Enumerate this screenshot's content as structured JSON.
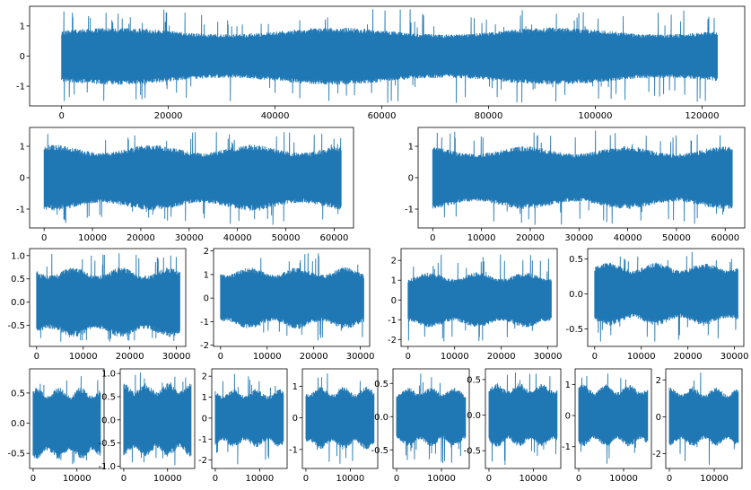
{
  "chart_data": [
    {
      "type": "line",
      "row": 1,
      "title": "",
      "xlabel": "",
      "ylabel": "",
      "xlim": [
        -6000,
        128000
      ],
      "ylim": [
        -1.65,
        1.65
      ],
      "xticks": [
        0,
        20000,
        40000,
        60000,
        80000,
        100000,
        120000
      ],
      "yticks": [
        -1,
        0,
        1
      ],
      "ytick_labels": [
        "-1",
        "0",
        "1"
      ],
      "n_samples": 122880,
      "amplitude": {
        "core": 0.95,
        "peak": 1.55,
        "min": -1.55
      },
      "series": [
        {
          "name": "",
          "color": "#1f77b4"
        }
      ],
      "grid": false,
      "legend": "none"
    },
    {
      "type": "line",
      "row": 2,
      "title": "",
      "xlabel": "",
      "ylabel": "",
      "xlim": [
        -3000,
        64000
      ],
      "ylim": [
        -1.6,
        1.6
      ],
      "xticks": [
        0,
        10000,
        20000,
        30000,
        40000,
        50000,
        60000
      ],
      "yticks": [
        -1,
        0,
        1
      ],
      "ytick_labels": [
        "-1",
        "0",
        "1"
      ],
      "n_samples": 61440,
      "amplitude": {
        "core": 1.05,
        "peak": 1.45,
        "min": -1.5
      },
      "series": [
        {
          "name": "",
          "color": "#1f77b4"
        }
      ],
      "grid": false,
      "legend": "none"
    },
    {
      "type": "line",
      "row": 2,
      "title": "",
      "xlabel": "",
      "ylabel": "",
      "xlim": [
        -3000,
        64000
      ],
      "ylim": [
        -1.6,
        1.6
      ],
      "xticks": [
        0,
        10000,
        20000,
        30000,
        40000,
        50000,
        60000
      ],
      "yticks": [
        -1,
        0,
        1
      ],
      "ytick_labels": [
        "-1",
        "0",
        "1"
      ],
      "n_samples": 61440,
      "amplitude": {
        "core": 1.0,
        "peak": 1.5,
        "min": -1.5
      },
      "series": [
        {
          "name": "",
          "color": "#1f77b4"
        }
      ],
      "grid": false,
      "legend": "none"
    },
    {
      "type": "line",
      "row": 3,
      "title": "",
      "xlabel": "",
      "ylabel": "",
      "xlim": [
        -1500,
        32000
      ],
      "ylim": [
        -0.95,
        1.15
      ],
      "xticks": [
        0,
        10000,
        20000,
        30000
      ],
      "yticks": [
        -0.5,
        0.0,
        0.5,
        1.0
      ],
      "ytick_labels": [
        "-0.5",
        "0.0",
        "0.5",
        "1.0"
      ],
      "n_samples": 30720,
      "amplitude": {
        "core": 0.75,
        "peak": 1.05,
        "min": -0.85
      },
      "series": [
        {
          "name": "",
          "color": "#1f77b4"
        }
      ],
      "grid": false,
      "legend": "none"
    },
    {
      "type": "line",
      "row": 3,
      "title": "",
      "xlabel": "",
      "ylabel": "",
      "xlim": [
        -1500,
        32000
      ],
      "ylim": [
        -2.05,
        2.1
      ],
      "xticks": [
        0,
        10000,
        20000,
        30000
      ],
      "yticks": [
        -2,
        -1,
        0,
        1,
        2
      ],
      "ytick_labels": [
        "-2",
        "-1",
        "0",
        "1",
        "2"
      ],
      "n_samples": 30720,
      "amplitude": {
        "core": 1.3,
        "peak": 1.9,
        "min": -1.8
      },
      "series": [
        {
          "name": "",
          "color": "#1f77b4"
        }
      ],
      "grid": false,
      "legend": "none"
    },
    {
      "type": "line",
      "row": 3,
      "title": "",
      "xlabel": "",
      "ylabel": "",
      "xlim": [
        -1500,
        32000
      ],
      "ylim": [
        -2.35,
        2.6
      ],
      "xticks": [
        0,
        10000,
        20000,
        30000
      ],
      "yticks": [
        -2,
        -1,
        0,
        1,
        2
      ],
      "ytick_labels": [
        "-2",
        "-1",
        "0",
        "1",
        "2"
      ],
      "n_samples": 30720,
      "amplitude": {
        "core": 1.4,
        "peak": 2.3,
        "min": -2.1
      },
      "series": [
        {
          "name": "",
          "color": "#1f77b4"
        }
      ],
      "grid": false,
      "legend": "none"
    },
    {
      "type": "line",
      "row": 3,
      "title": "",
      "xlabel": "",
      "ylabel": "",
      "xlim": [
        -1500,
        32000
      ],
      "ylim": [
        -0.75,
        0.65
      ],
      "xticks": [
        0,
        10000,
        20000,
        30000
      ],
      "yticks": [
        -0.5,
        0.0,
        0.5
      ],
      "ytick_labels": [
        "-0.5",
        "0.0",
        "0.5"
      ],
      "n_samples": 30720,
      "amplitude": {
        "core": 0.45,
        "peak": 0.6,
        "min": -0.68
      },
      "series": [
        {
          "name": "",
          "color": "#1f77b4"
        }
      ],
      "grid": false,
      "legend": "none"
    },
    {
      "type": "line",
      "row": 4,
      "title": "",
      "xlabel": "",
      "ylabel": "",
      "xlim": [
        -800,
        16200
      ],
      "ylim": [
        -0.75,
        0.9
      ],
      "xticks": [
        0,
        10000
      ],
      "yticks": [
        -0.5,
        0.0,
        0.5
      ],
      "ytick_labels": [
        "-0.5",
        "0.0",
        "0.5"
      ],
      "n_samples": 15360,
      "amplitude": {
        "core": 0.6,
        "peak": 0.78,
        "min": -0.68
      },
      "series": [
        {
          "name": "",
          "color": "#1f77b4"
        }
      ],
      "grid": false,
      "legend": "none"
    },
    {
      "type": "line",
      "row": 4,
      "title": "",
      "xlabel": "",
      "ylabel": "",
      "xlim": [
        -800,
        16200
      ],
      "ylim": [
        -1.05,
        1.1
      ],
      "xticks": [
        0,
        10000
      ],
      "yticks": [
        -1.0,
        -0.5,
        0.0,
        0.5,
        1.0
      ],
      "ytick_labels": [
        "-1.0",
        "-0.5",
        "0.0",
        "0.5",
        "1.0"
      ],
      "n_samples": 15360,
      "amplitude": {
        "core": 0.8,
        "peak": 1.02,
        "min": -0.98
      },
      "series": [
        {
          "name": "",
          "color": "#1f77b4"
        }
      ],
      "grid": false,
      "legend": "none"
    },
    {
      "type": "line",
      "row": 4,
      "title": "",
      "xlabel": "",
      "ylabel": "",
      "xlim": [
        -800,
        16200
      ],
      "ylim": [
        -2.4,
        2.35
      ],
      "xticks": [
        0,
        10000
      ],
      "yticks": [
        -2,
        -1,
        0,
        1,
        2
      ],
      "ytick_labels": [
        "-2",
        "-1",
        "0",
        "1",
        "2"
      ],
      "n_samples": 15360,
      "amplitude": {
        "core": 1.4,
        "peak": 2.1,
        "min": -2.2
      },
      "series": [
        {
          "name": "",
          "color": "#1f77b4"
        }
      ],
      "grid": false,
      "legend": "none"
    },
    {
      "type": "line",
      "row": 4,
      "title": "",
      "xlabel": "",
      "ylabel": "",
      "xlim": [
        -800,
        16200
      ],
      "ylim": [
        -1.6,
        1.55
      ],
      "xticks": [
        0,
        10000
      ],
      "yticks": [
        -1,
        0,
        1
      ],
      "ytick_labels": [
        "-1",
        "0",
        "1"
      ],
      "n_samples": 15360,
      "amplitude": {
        "core": 1.0,
        "peak": 1.4,
        "min": -1.45
      },
      "series": [
        {
          "name": "",
          "color": "#1f77b4"
        }
      ],
      "grid": false,
      "legend": "none"
    },
    {
      "type": "line",
      "row": 4,
      "title": "",
      "xlabel": "",
      "ylabel": "",
      "xlim": [
        -800,
        16200
      ],
      "ylim": [
        -0.78,
        0.72
      ],
      "xticks": [
        0,
        10000
      ],
      "yticks": [
        -0.5,
        0.0,
        0.5
      ],
      "ytick_labels": [
        "-0.5",
        "0.0",
        "0.5"
      ],
      "n_samples": 15360,
      "amplitude": {
        "core": 0.45,
        "peak": 0.65,
        "min": -0.7
      },
      "series": [
        {
          "name": "",
          "color": "#1f77b4"
        }
      ],
      "grid": false,
      "legend": "none"
    },
    {
      "type": "line",
      "row": 4,
      "title": "",
      "xlabel": "",
      "ylabel": "",
      "xlim": [
        -800,
        16200
      ],
      "ylim": [
        -0.75,
        0.65
      ],
      "xticks": [
        0,
        10000
      ],
      "yticks": [
        -0.5,
        0.0,
        0.5
      ],
      "ytick_labels": [
        "-0.5",
        "0.0",
        "0.5"
      ],
      "n_samples": 15360,
      "amplitude": {
        "core": 0.45,
        "peak": 0.6,
        "min": -0.7
      },
      "series": [
        {
          "name": "",
          "color": "#1f77b4"
        }
      ],
      "grid": false,
      "legend": "none"
    },
    {
      "type": "line",
      "row": 4,
      "title": "",
      "xlabel": "",
      "ylabel": "",
      "xlim": [
        -800,
        16200
      ],
      "ylim": [
        -1.7,
        1.5
      ],
      "xticks": [
        0,
        10000
      ],
      "yticks": [
        -1,
        0,
        1
      ],
      "ytick_labels": [
        "-1",
        "0",
        "1"
      ],
      "n_samples": 15360,
      "amplitude": {
        "core": 1.0,
        "peak": 1.35,
        "min": -1.55
      },
      "series": [
        {
          "name": "",
          "color": "#1f77b4"
        }
      ],
      "grid": false,
      "legend": "none"
    },
    {
      "type": "line",
      "row": 4,
      "title": "",
      "xlabel": "",
      "ylabel": "",
      "xlim": [
        -800,
        16200
      ],
      "ylim": [
        -2.8,
        2.6
      ],
      "xticks": [
        0,
        10000
      ],
      "yticks": [
        -2,
        0,
        2
      ],
      "ytick_labels": [
        "-2",
        "0",
        "2"
      ],
      "n_samples": 15360,
      "amplitude": {
        "core": 1.6,
        "peak": 2.4,
        "min": -2.6
      },
      "series": [
        {
          "name": "",
          "color": "#1f77b4"
        }
      ],
      "grid": false,
      "legend": "none"
    }
  ]
}
